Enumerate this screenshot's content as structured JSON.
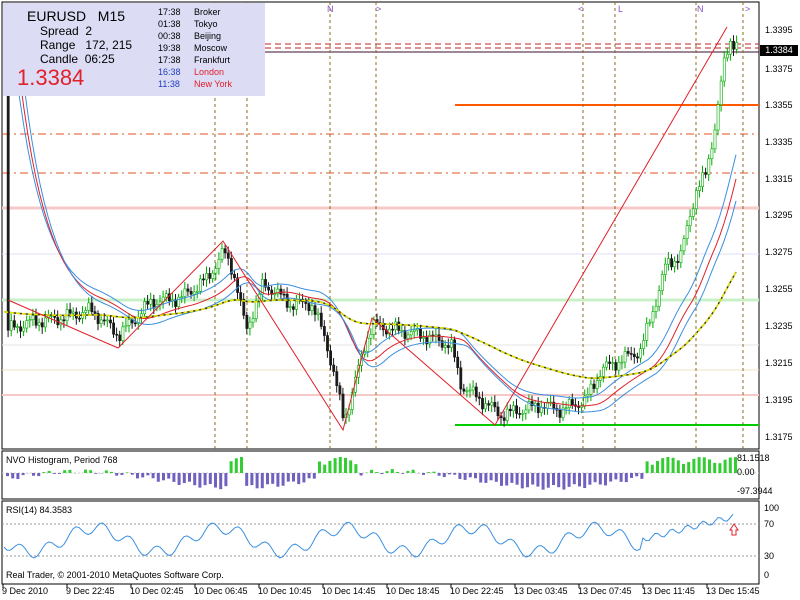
{
  "info_panel": {
    "symbol": "EURUSD",
    "timeframe": "M15",
    "spread_label": "Spread",
    "spread_value": "2",
    "range_label": "Range",
    "range_value": "172, 215",
    "candle_label": "Candle",
    "candle_value": "06:25",
    "price": "1.3384"
  },
  "clocks": [
    {
      "time": "17:38",
      "city": "Broker",
      "color": "#000000"
    },
    {
      "time": "01:38",
      "city": "Tokyo",
      "color": "#000000"
    },
    {
      "time": "00:38",
      "city": "Beijing",
      "color": "#000000"
    },
    {
      "time": "19:38",
      "city": "Moscow",
      "color": "#000000"
    },
    {
      "time": "17:38",
      "city": "Frankfurt",
      "color": "#000000"
    },
    {
      "time": "16:38",
      "city": "London",
      "color": "#e0202a"
    },
    {
      "time": "11:38",
      "city": "New York",
      "color": "#e0202a"
    }
  ],
  "session_markers": [
    "N",
    ">",
    "<",
    "L",
    "N",
    ">"
  ],
  "price_axis": [
    "1.3395",
    "1.3375",
    "1.3355",
    "1.3335",
    "1.3315",
    "1.3295",
    "1.3275",
    "1.3255",
    "1.3235",
    "1.3215",
    "1.3195",
    "1.3175"
  ],
  "current_price_tag": "1.3384",
  "indicator1": {
    "title": "NVO Histogram, Period 768",
    "labels": [
      "81.1518",
      "0.00",
      "-97.3944"
    ]
  },
  "indicator2": {
    "title": "RSI(14) 84.3583",
    "labels": [
      "100",
      "70",
      "30",
      "0"
    ]
  },
  "time_axis": [
    "9 Dec 2010",
    "9 Dec 22:45",
    "10 Dec 02:45",
    "10 Dec 06:45",
    "10 Dec 10:45",
    "10 Dec 14:45",
    "10 Dec 18:45",
    "10 Dec 22:45",
    "13 Dec 03:45",
    "13 Dec 07:45",
    "13 Dec 11:45",
    "13 Dec 15:45"
  ],
  "copyright": "Real Trader, © 2001-2010 MetaQuotes Software Corp.",
  "colors": {
    "bull": "#00aa00",
    "bear": "#1a1a1a",
    "red_line": "#e0202a",
    "ma_blue": "#3a8fe0",
    "ma_yellow": "#e8e800",
    "support": "#00cc00",
    "resistance": "#ff5a00",
    "histogram_pos": "#33cc33",
    "histogram_neg": "#7060c0",
    "rsi_line": "#3a8fe0"
  }
}
